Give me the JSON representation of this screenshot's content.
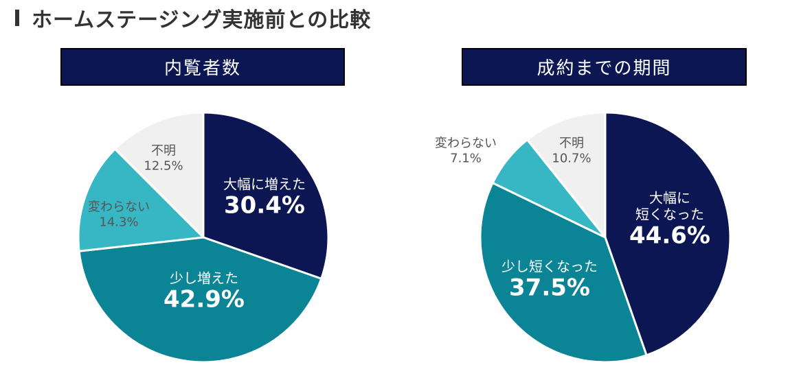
{
  "heading": "ホームステージング実施前との比較",
  "chart_data": [
    {
      "type": "pie",
      "title": "内覧者数",
      "slices": [
        {
          "name": "大幅に増えた",
          "value": 30.4,
          "label": "30.4%",
          "color": "#0b1652",
          "style": "dark"
        },
        {
          "name": "少し増えた",
          "value": 42.9,
          "label": "42.9%",
          "color": "#0b8495",
          "style": "dark"
        },
        {
          "name": "変わらない",
          "value": 14.3,
          "label": "14.3%",
          "color": "#37b6c4",
          "style": "light"
        },
        {
          "name": "不明",
          "value": 12.5,
          "label": "12.5%",
          "color": "#f0f0f0",
          "style": "light"
        }
      ]
    },
    {
      "type": "pie",
      "title": "成約までの期間",
      "slices": [
        {
          "name": "大幅に\n短くなった",
          "value": 44.6,
          "label": "44.6%",
          "color": "#0b1652",
          "style": "dark"
        },
        {
          "name": "少し短くなった",
          "value": 37.5,
          "label": "37.5%",
          "color": "#0b8495",
          "style": "dark"
        },
        {
          "name": "変わらない",
          "value": 7.1,
          "label": "7.1%",
          "color": "#37b6c4",
          "style": "light"
        },
        {
          "name": "不明",
          "value": 10.7,
          "label": "10.7%",
          "color": "#f0f0f0",
          "style": "light"
        }
      ]
    }
  ]
}
